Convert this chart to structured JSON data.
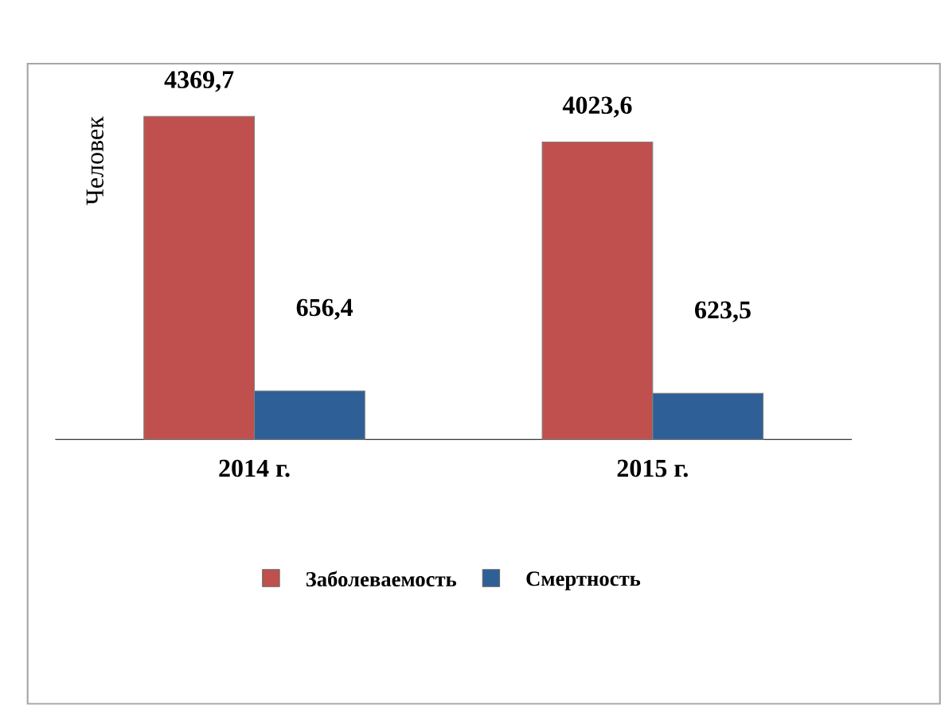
{
  "chart_data": {
    "type": "bar",
    "ylabel": "Человек",
    "categories": [
      "2014 г.",
      "2015 г."
    ],
    "series": [
      {
        "name": "Заболеваемость",
        "color": "#c0504d",
        "values": [
          4369.7,
          4023.6
        ],
        "value_labels": [
          "4369,7",
          "4023,6"
        ]
      },
      {
        "name": "Смертность",
        "color": "#2f5f97",
        "values": [
          656.4,
          623.5
        ],
        "value_labels": [
          "656,4",
          "623,5"
        ]
      }
    ],
    "legend": "bottom"
  }
}
